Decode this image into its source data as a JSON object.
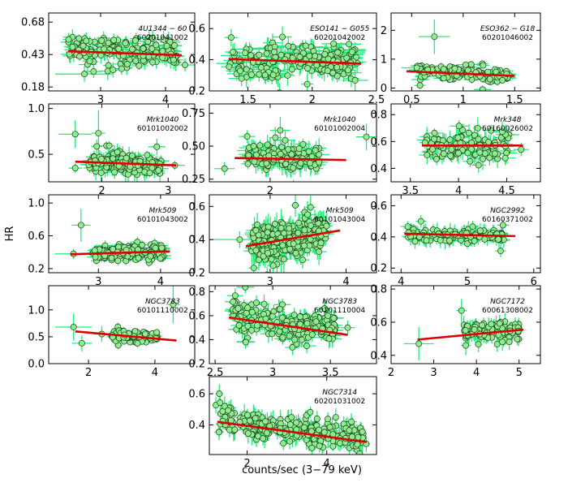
{
  "figure": {
    "ylabel": "HR",
    "xlabel": "counts/sec (3−79 keV)"
  },
  "colors": {
    "marker_fill": "#90ee90",
    "marker_edge": "#1a3a1a",
    "errorbar": "#22ee77",
    "fit_line": "#dd0000"
  },
  "chart_data": [
    {
      "type": "scatter",
      "title": "4U1344−60 60201041002",
      "name_line": "4U1344 − 60",
      "obsid": "60201041002",
      "xlim": [
        2.2,
        4.45
      ],
      "ylim": [
        0.15,
        0.75
      ],
      "xticks": [
        3,
        4
      ],
      "yticks": [
        0.18,
        0.43,
        0.68
      ],
      "ytick_labels": [
        "0.18",
        "0.43",
        "0.68"
      ],
      "points": {
        "x_range": [
          2.5,
          4.2
        ],
        "y_center": 0.46,
        "y_spread": 0.06,
        "n": 160,
        "xerr": 0.12,
        "yerr": 0.05,
        "trend": -0.02
      },
      "outliers": [
        {
          "x": 2.75,
          "y": 0.28,
          "xerr": 0.45,
          "yerr": 0.06
        },
        {
          "x": 4.3,
          "y": 0.35,
          "xerr": 0.2,
          "yerr": 0.05
        }
      ],
      "fit": {
        "x": [
          2.5,
          4.25
        ],
        "y": [
          0.455,
          0.425
        ]
      }
    },
    {
      "type": "scatter",
      "title": "ESO141−G055 60201042002",
      "name_line": "ESO141 − G055",
      "obsid": "60201042002",
      "xlim": [
        1.2,
        2.5
      ],
      "ylim": [
        0.2,
        0.7
      ],
      "xticks": [
        1.5,
        2.0,
        2.5
      ],
      "yticks": [
        0.2,
        0.4,
        0.6
      ],
      "ytick_labels": [
        "0.2",
        "0.4",
        "0.6"
      ],
      "points": {
        "x_range": [
          1.35,
          2.35
        ],
        "y_center": 0.39,
        "y_spread": 0.06,
        "n": 170,
        "xerr": 0.08,
        "yerr": 0.05,
        "trend": -0.02
      },
      "outliers": [
        {
          "x": 1.45,
          "y": 0.28,
          "xerr": 0.1,
          "yerr": 0.05
        }
      ],
      "fit": {
        "x": [
          1.35,
          2.38
        ],
        "y": [
          0.405,
          0.375
        ]
      }
    },
    {
      "type": "scatter",
      "title": "ESO362−G18 60201046002",
      "name_line": "ESO362 − G18",
      "obsid": "60201046002",
      "xlim": [
        0.3,
        1.75
      ],
      "ylim": [
        -0.1,
        2.6
      ],
      "xticks": [
        0.5,
        1.0,
        1.5
      ],
      "yticks": [
        0,
        1,
        2
      ],
      "ytick_labels": [
        "0",
        "1",
        "2"
      ],
      "points": {
        "x_range": [
          0.55,
          1.45
        ],
        "y_center": 0.5,
        "y_spread": 0.15,
        "n": 130,
        "xerr": 0.07,
        "yerr": 0.1,
        "trend": -0.15
      },
      "outliers": [
        {
          "x": 0.72,
          "y": 1.78,
          "xerr": 0.15,
          "yerr": 0.6
        },
        {
          "x": 0.55,
          "y": 0.7,
          "xerr": 0.15,
          "yerr": 0.15
        }
      ],
      "fit": {
        "x": [
          0.45,
          1.5
        ],
        "y": [
          0.58,
          0.42
        ]
      }
    },
    {
      "type": "scatter",
      "title": "Mrk1040 60101002002",
      "name_line": "Mrk1040",
      "obsid": "60101002002",
      "xlim": [
        1.2,
        3.4
      ],
      "ylim": [
        0.2,
        1.05
      ],
      "xticks": [
        2,
        3
      ],
      "yticks": [
        0.5,
        1.0
      ],
      "ytick_labels": [
        "0.5",
        "1.0"
      ],
      "points": {
        "x_range": [
          1.8,
          2.9
        ],
        "y_center": 0.41,
        "y_spread": 0.06,
        "n": 140,
        "xerr": 0.1,
        "yerr": 0.07,
        "trend": -0.03
      },
      "outliers": [
        {
          "x": 1.6,
          "y": 0.72,
          "xerr": 0.25,
          "yerr": 0.15
        },
        {
          "x": 1.95,
          "y": 0.73,
          "xerr": 0.1,
          "yerr": 0.25
        },
        {
          "x": 1.6,
          "y": 0.35,
          "xerr": 0.1,
          "yerr": 0.05
        },
        {
          "x": 3.1,
          "y": 0.38,
          "xerr": 0.15,
          "yerr": 0.05
        }
      ],
      "fit": {
        "x": [
          1.6,
          3.12
        ],
        "y": [
          0.42,
          0.38
        ]
      }
    },
    {
      "type": "scatter",
      "title": "Mrk1040 60101002004",
      "name_line": "Mrk1040",
      "obsid": "60101002004",
      "xlim": [
        1.4,
        3.05
      ],
      "ylim": [
        0.23,
        0.82
      ],
      "xticks": [
        2
      ],
      "yticks": [
        0.25,
        0.5,
        0.75
      ],
      "ytick_labels": [
        "0.25",
        "0.50",
        "0.75"
      ],
      "points": {
        "x_range": [
          1.75,
          2.5
        ],
        "y_center": 0.42,
        "y_spread": 0.05,
        "n": 130,
        "xerr": 0.08,
        "yerr": 0.06,
        "trend": -0.02
      },
      "outliers": [
        {
          "x": 1.55,
          "y": 0.33,
          "xerr": 0.1,
          "yerr": 0.05
        },
        {
          "x": 2.1,
          "y": 0.62,
          "xerr": 0.1,
          "yerr": 0.1
        },
        {
          "x": 2.95,
          "y": 0.57,
          "xerr": 0.1,
          "yerr": 0.1
        }
      ],
      "fit": {
        "x": [
          1.65,
          2.75
        ],
        "y": [
          0.41,
          0.395
        ]
      }
    },
    {
      "type": "scatter",
      "title": "Mrk348 60160026002",
      "name_line": "Mrk348",
      "obsid": "60160026002",
      "xlim": [
        3.3,
        4.85
      ],
      "ylim": [
        0.3,
        0.88
      ],
      "xticks": [
        3.5,
        4.0,
        4.5
      ],
      "yticks": [
        0.4,
        0.6,
        0.8
      ],
      "ytick_labels": [
        "0.4",
        "0.6",
        "0.8"
      ],
      "points": {
        "x_range": [
          3.65,
          4.55
        ],
        "y_center": 0.57,
        "y_spread": 0.05,
        "n": 110,
        "xerr": 0.08,
        "yerr": 0.06,
        "trend": -0.01
      },
      "outliers": [
        {
          "x": 4.65,
          "y": 0.54,
          "xerr": 0.08,
          "yerr": 0.05
        },
        {
          "x": 4.2,
          "y": 0.7,
          "xerr": 0.05,
          "yerr": 0.08
        }
      ],
      "fit": {
        "x": [
          3.62,
          4.67
        ],
        "y": [
          0.57,
          0.57
        ]
      }
    },
    {
      "type": "scatter",
      "title": "Mrk509 60101043002",
      "name_line": "Mrk509",
      "obsid": "60101043002",
      "xlim": [
        2.2,
        4.55
      ],
      "ylim": [
        0.15,
        1.1
      ],
      "xticks": [
        3,
        4
      ],
      "yticks": [
        0.2,
        0.6,
        1.0
      ],
      "ytick_labels": [
        "0.2",
        "0.6",
        "1.0"
      ],
      "points": {
        "x_range": [
          2.9,
          4.05
        ],
        "y_center": 0.4,
        "y_spread": 0.05,
        "n": 160,
        "xerr": 0.1,
        "yerr": 0.05,
        "trend": 0.02
      },
      "outliers": [
        {
          "x": 2.72,
          "y": 0.73,
          "xerr": 0.15,
          "yerr": 0.2
        },
        {
          "x": 2.6,
          "y": 0.38,
          "xerr": 0.3,
          "yerr": 0.06
        }
      ],
      "fit": {
        "x": [
          2.55,
          4.15
        ],
        "y": [
          0.375,
          0.41
        ]
      }
    },
    {
      "type": "scatter",
      "title": "Mrk509 60101043004",
      "name_line": "Mrk509",
      "obsid": "60101043004",
      "xlim": [
        2.2,
        4.4
      ],
      "ylim": [
        0.2,
        0.67
      ],
      "xticks": [
        3,
        4
      ],
      "yticks": [
        0.2,
        0.4,
        0.6
      ],
      "ytick_labels": [
        "0.2",
        "0.4",
        "0.6"
      ],
      "points": {
        "x_range": [
          2.75,
          3.75
        ],
        "y_center": 0.4,
        "y_spread": 0.06,
        "n": 230,
        "xerr": 0.08,
        "yerr": 0.06,
        "trend": 0.08
      },
      "outliers": [
        {
          "x": 2.6,
          "y": 0.4,
          "xerr": 0.4,
          "yerr": 0.05
        }
      ],
      "fit": {
        "x": [
          2.68,
          3.92
        ],
        "y": [
          0.36,
          0.455
        ]
      }
    },
    {
      "type": "scatter",
      "title": "NGC2992 60160371002",
      "name_line": "NGC2992",
      "obsid": "60160371002",
      "xlim": [
        3.85,
        6.1
      ],
      "ylim": [
        0.17,
        0.67
      ],
      "xticks": [
        4,
        5,
        6
      ],
      "yticks": [
        0.2,
        0.4,
        0.6
      ],
      "ytick_labels": [
        "0.2",
        "0.4",
        "0.6"
      ],
      "points": {
        "x_range": [
          4.1,
          5.55
        ],
        "y_center": 0.41,
        "y_spread": 0.025,
        "n": 110,
        "xerr": 0.1,
        "yerr": 0.04,
        "trend": -0.01
      },
      "outliers": [
        {
          "x": 5.5,
          "y": 0.31,
          "xerr": 0.08,
          "yerr": 0.04
        },
        {
          "x": 4.3,
          "y": 0.5,
          "xerr": 0.08,
          "yerr": 0.04
        }
      ],
      "fit": {
        "x": [
          4.05,
          5.72
        ],
        "y": [
          0.42,
          0.405
        ]
      }
    },
    {
      "type": "scatter",
      "title": "NGC3783 60101110002",
      "name_line": "NGC3783",
      "obsid": "60101110002",
      "xlim": [
        0.8,
        5.2
      ],
      "ylim": [
        0.0,
        1.45
      ],
      "xticks": [
        2,
        4
      ],
      "yticks": [
        0.0,
        0.5,
        1.0
      ],
      "ytick_labels": [
        "0.0",
        "0.5",
        "1.0"
      ],
      "points": {
        "x_range": [
          2.7,
          4.1
        ],
        "y_center": 0.5,
        "y_spread": 0.05,
        "n": 110,
        "xerr": 0.12,
        "yerr": 0.06,
        "trend": -0.05
      },
      "outliers": [
        {
          "x": 1.55,
          "y": 0.68,
          "xerr": 0.55,
          "yerr": 0.25
        },
        {
          "x": 1.8,
          "y": 0.38,
          "xerr": 0.3,
          "yerr": 0.15
        },
        {
          "x": 4.55,
          "y": 1.1,
          "xerr": 0.2,
          "yerr": 0.35
        },
        {
          "x": 2.4,
          "y": 0.55,
          "xerr": 0.25,
          "yerr": 0.15
        }
      ],
      "fit": {
        "x": [
          1.6,
          4.65
        ],
        "y": [
          0.6,
          0.43
        ]
      }
    },
    {
      "type": "scatter",
      "title": "NGC3783 60101110004",
      "name_line": "NGC3783",
      "obsid": "60101110004",
      "xlim": [
        2.45,
        3.9
      ],
      "ylim": [
        0.2,
        0.85
      ],
      "xticks": [
        2.5,
        3.0,
        3.5
      ],
      "yticks": [
        0.2,
        0.4,
        0.6,
        0.8
      ],
      "ytick_labels": [
        "0.2",
        "0.4",
        "0.6",
        "0.8"
      ],
      "points": {
        "x_range": [
          2.65,
          3.55
        ],
        "y_center": 0.54,
        "y_spread": 0.07,
        "n": 180,
        "xerr": 0.06,
        "yerr": 0.06,
        "trend": -0.12
      },
      "outliers": [
        {
          "x": 2.7,
          "y": 0.66,
          "xerr": 0.06,
          "yerr": 0.07
        },
        {
          "x": 3.65,
          "y": 0.5,
          "xerr": 0.06,
          "yerr": 0.06
        }
      ],
      "fit": {
        "x": [
          2.62,
          3.65
        ],
        "y": [
          0.585,
          0.44
        ]
      }
    },
    {
      "type": "scatter",
      "title": "NGC7172 60061308002",
      "name_line": "NGC7172",
      "obsid": "60061308002",
      "xlim": [
        2.0,
        5.5
      ],
      "ylim": [
        0.35,
        0.82
      ],
      "xticks": [
        2,
        3,
        4,
        5
      ],
      "yticks": [
        0.4,
        0.6,
        0.8
      ],
      "ytick_labels": [
        "0.4",
        "0.6",
        "0.8"
      ],
      "points": {
        "x_range": [
          3.7,
          5.05
        ],
        "y_center": 0.54,
        "y_spread": 0.03,
        "n": 110,
        "xerr": 0.08,
        "yerr": 0.04,
        "trend": 0.01
      },
      "outliers": [
        {
          "x": 2.65,
          "y": 0.47,
          "xerr": 0.35,
          "yerr": 0.1
        },
        {
          "x": 3.65,
          "y": 0.67,
          "xerr": 0.12,
          "yerr": 0.07
        },
        {
          "x": 3.75,
          "y": 0.46,
          "xerr": 0.12,
          "yerr": 0.06
        }
      ],
      "fit": {
        "x": [
          2.62,
          5.1
        ],
        "y": [
          0.495,
          0.555
        ]
      }
    },
    {
      "type": "scatter",
      "title": "NGC7314 60201031002",
      "name_line": "NGC7314",
      "obsid": "60201031002",
      "xlim": [
        1.05,
        5.25
      ],
      "ylim": [
        0.21,
        0.71
      ],
      "xticks": [
        2,
        4
      ],
      "yticks": [
        0.4,
        0.6
      ],
      "ytick_labels": [
        "0.4",
        "0.6"
      ],
      "points": {
        "x_range": [
          1.2,
          5.0
        ],
        "y_center": 0.37,
        "y_spread": 0.05,
        "n": 240,
        "xerr": 0.1,
        "yerr": 0.05,
        "trend": -0.13
      },
      "outliers": [
        {
          "x": 1.3,
          "y": 0.6,
          "xerr": 0.1,
          "yerr": 0.06
        }
      ],
      "fit": {
        "x": [
          1.25,
          5.0
        ],
        "y": [
          0.42,
          0.29
        ]
      }
    }
  ]
}
